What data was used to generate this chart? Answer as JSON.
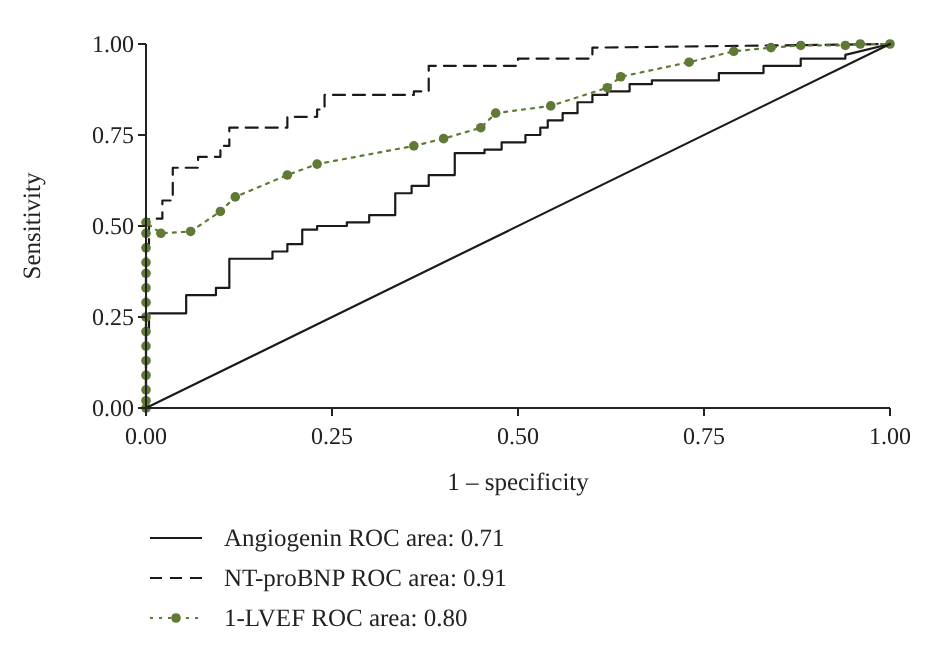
{
  "chart_data": {
    "type": "line",
    "xlabel": "1 – specificity",
    "ylabel": "Sensitivity",
    "xlim": [
      0,
      1
    ],
    "ylim": [
      0,
      1
    ],
    "xticks": [
      {
        "value": 0,
        "label": "0.00"
      },
      {
        "value": 0.25,
        "label": "0.25"
      },
      {
        "value": 0.5,
        "label": "0.50"
      },
      {
        "value": 0.75,
        "label": "0.75"
      },
      {
        "value": 1,
        "label": "1.00"
      }
    ],
    "yticks": [
      {
        "value": 0,
        "label": "0.00"
      },
      {
        "value": 0.25,
        "label": "0.25"
      },
      {
        "value": 0.5,
        "label": "0.50"
      },
      {
        "value": 0.75,
        "label": "0.75"
      },
      {
        "value": 1,
        "label": "1.00"
      }
    ],
    "grid": false,
    "legend": "bottom",
    "series": [
      {
        "name": "Angiogenin ROC area: 0.71",
        "color": "#1a1a1a",
        "line_style": "solid",
        "marker": "none",
        "x": [
          0,
          0,
          0.004,
          0.004,
          0.054,
          0.054,
          0.094,
          0.094,
          0.112,
          0.112,
          0.17,
          0.17,
          0.19,
          0.19,
          0.21,
          0.21,
          0.23,
          0.23,
          0.27,
          0.27,
          0.3,
          0.3,
          0.335,
          0.335,
          0.357,
          0.357,
          0.38,
          0.38,
          0.415,
          0.415,
          0.455,
          0.455,
          0.478,
          0.478,
          0.51,
          0.51,
          0.53,
          0.53,
          0.54,
          0.54,
          0.56,
          0.56,
          0.58,
          0.58,
          0.6,
          0.6,
          0.62,
          0.62,
          0.65,
          0.65,
          0.68,
          0.68,
          0.77,
          0.77,
          0.83,
          0.83,
          0.88,
          0.88,
          0.94,
          0.94,
          1
        ],
        "values": [
          0,
          0.21,
          0.21,
          0.26,
          0.26,
          0.31,
          0.31,
          0.33,
          0.33,
          0.41,
          0.41,
          0.43,
          0.43,
          0.45,
          0.45,
          0.49,
          0.49,
          0.5,
          0.5,
          0.51,
          0.51,
          0.53,
          0.53,
          0.59,
          0.59,
          0.61,
          0.61,
          0.64,
          0.64,
          0.7,
          0.7,
          0.71,
          0.71,
          0.73,
          0.73,
          0.75,
          0.75,
          0.77,
          0.77,
          0.79,
          0.79,
          0.81,
          0.81,
          0.84,
          0.84,
          0.86,
          0.86,
          0.87,
          0.87,
          0.89,
          0.89,
          0.9,
          0.9,
          0.92,
          0.92,
          0.94,
          0.94,
          0.96,
          0.96,
          0.97,
          1
        ]
      },
      {
        "name": "NT-proBNP ROC area: 0.91",
        "color": "#1a1a1a",
        "line_style": "dashed",
        "marker": "none",
        "x": [
          0,
          0,
          0.004,
          0.004,
          0.022,
          0.022,
          0.036,
          0.036,
          0.07,
          0.07,
          0.1,
          0.1,
          0.112,
          0.112,
          0.19,
          0.19,
          0.23,
          0.23,
          0.24,
          0.24,
          0.36,
          0.36,
          0.38,
          0.38,
          0.5,
          0.5,
          0.6,
          0.6,
          1
        ],
        "values": [
          0,
          0.45,
          0.45,
          0.52,
          0.52,
          0.57,
          0.57,
          0.66,
          0.66,
          0.69,
          0.69,
          0.72,
          0.72,
          0.77,
          0.77,
          0.8,
          0.8,
          0.82,
          0.82,
          0.86,
          0.86,
          0.87,
          0.87,
          0.94,
          0.94,
          0.96,
          0.96,
          0.99,
          1
        ]
      },
      {
        "name": "1-LVEF ROC area: 0.80",
        "color": "#5f7a35",
        "line_style": "dotted",
        "marker": "circle",
        "x": [
          0,
          0,
          0,
          0,
          0,
          0,
          0,
          0,
          0,
          0,
          0,
          0,
          0,
          0,
          0,
          0.02,
          0.06,
          0.1,
          0.12,
          0.19,
          0.23,
          0.36,
          0.4,
          0.45,
          0.47,
          0.544,
          0.62,
          0.638,
          0.73,
          0.79,
          0.84,
          0.88,
          0.94,
          0.96,
          1
        ],
        "values": [
          0,
          0.02,
          0.05,
          0.09,
          0.13,
          0.17,
          0.21,
          0.25,
          0.29,
          0.33,
          0.37,
          0.4,
          0.44,
          0.48,
          0.51,
          0.48,
          0.485,
          0.54,
          0.58,
          0.64,
          0.67,
          0.72,
          0.74,
          0.77,
          0.81,
          0.83,
          0.88,
          0.91,
          0.95,
          0.98,
          0.99,
          0.996,
          0.996,
          1,
          1
        ]
      },
      {
        "color": "#1a1a1a",
        "line_style": "solid",
        "marker": "none",
        "x": [
          0,
          1
        ],
        "values": [
          0,
          1
        ]
      }
    ]
  }
}
